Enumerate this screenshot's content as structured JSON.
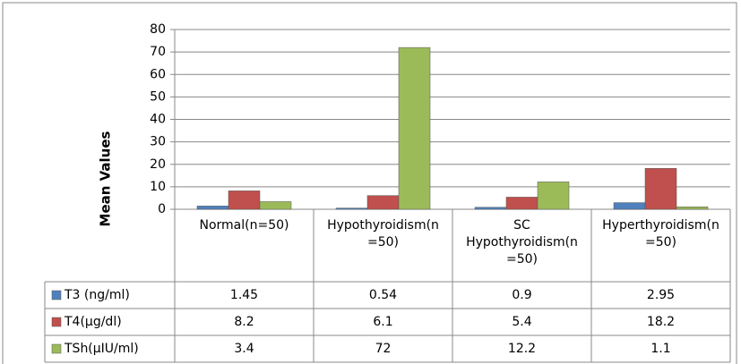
{
  "chart_data": {
    "type": "bar",
    "y_label": "Mean Values",
    "categories": [
      "Normal(n=50)",
      "Hypothyroidism(n=50)",
      "SC Hypothyroidism(n=50)",
      "Hyperthyroidism(n=50)"
    ],
    "series": [
      {
        "name": "T3 (ng/ml)",
        "color": "#4f81bd",
        "values": [
          1.45,
          0.54,
          0.9,
          2.95
        ]
      },
      {
        "name": "T4(µg/dl)",
        "color": "#c0504d",
        "values": [
          8.2,
          6.1,
          5.4,
          18.2
        ]
      },
      {
        "name": "TSh(µIU/ml)",
        "color": "#9bbb59",
        "values": [
          3.4,
          72,
          12.2,
          1.1
        ]
      }
    ],
    "ylim": [
      0,
      80
    ],
    "yticks": [
      0,
      10,
      20,
      30,
      40,
      50,
      60,
      70,
      80
    ],
    "grid": true
  }
}
